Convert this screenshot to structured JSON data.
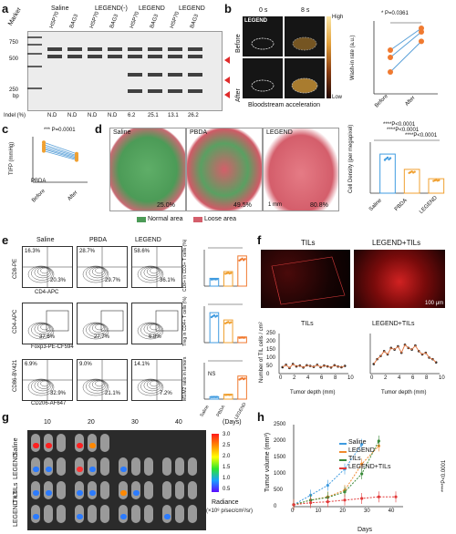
{
  "panels": {
    "a": "a",
    "b": "b",
    "c": "c",
    "d": "d",
    "e": "e",
    "f": "f",
    "g": "g",
    "h": "h"
  },
  "panel_a": {
    "groups": [
      "Saline",
      "LEGEND(-)",
      "LEGEND",
      "LEGEND"
    ],
    "lanes": [
      "Marker",
      "HSP70",
      "BAG3",
      "HSP70",
      "BAG3",
      "HSP70",
      "BAG3",
      "HSP70",
      "BAG3"
    ],
    "ladder": [
      "750",
      "500",
      "250",
      "bp"
    ],
    "indel_label": "Indel (%)",
    "indel": [
      "N.D",
      "N.D",
      "N.D",
      "N.D",
      "6.2",
      "25.1",
      "13.1",
      "26.2"
    ]
  },
  "panel_b": {
    "times": [
      "0 s",
      "8 s"
    ],
    "rows": [
      "Before",
      "After"
    ],
    "tag": "LEGEND",
    "scale_high": "High",
    "scale_low": "Low",
    "caption": "Bloodstream acceleration",
    "ylabel": "Wash-in rate (a.u.)",
    "pvalue": "* P=0.0361",
    "xticks": [
      "Before",
      "After"
    ]
  },
  "panel_c": {
    "ylabel": "TIFP (mmHg)",
    "pvalue": "*** P=0.0001",
    "tag": "PBDA",
    "xticks": [
      "Before",
      "After"
    ]
  },
  "panel_d": {
    "labels": [
      "Saline",
      "PBDA",
      "LEGEND"
    ],
    "pcts": [
      "25.0%",
      "49.5%",
      "80.8%"
    ],
    "legend": [
      "Normal area",
      "Loose area"
    ],
    "scalebar": "1 mm",
    "ylabel": "Cell Density (per megapixel)",
    "xticks": [
      "Saline",
      "PBDA",
      "LEGEND"
    ],
    "pvalues": [
      "****P<0.0001",
      "****P<0.0001",
      "****P<0.0001"
    ]
  },
  "panel_e": {
    "cols": [
      "Saline",
      "PBDA",
      "LEGEND"
    ],
    "row1": {
      "ylab": "CD8-PE",
      "xlab": "CD4-APC",
      "tl": [
        "16.3%",
        "28.7%",
        "58.6%"
      ],
      "br": [
        "20.3%",
        "29.7%",
        "36.1%"
      ]
    },
    "row2": {
      "ylab": "CD4-APC",
      "xlab": "Foxp3-PE-CF594",
      "vals": [
        "37.6%",
        "27.7%",
        "6.8%"
      ]
    },
    "row3": {
      "ylab": "CD86-BV421",
      "xlab": "CD206-AF647",
      "tl": [
        "6.9%",
        "9.0%",
        "14.1%"
      ],
      "br": [
        "32.9%",
        "21.1%",
        "7.2%"
      ]
    },
    "bar_ylabels": [
      "CD8+ in CD3+ T cells (%)",
      "Treg in CD4+ T cells (%)",
      "M1/M2 ratio in tumors"
    ],
    "bar_xticks": [
      "Saline",
      "PBDA",
      "LEGEND"
    ],
    "ns": "NS"
  },
  "panel_f": {
    "titles": [
      "TILs",
      "LEGEND+TILs"
    ],
    "scalebar": "100 μm",
    "ylabel": "Number of TIL cells / cm²",
    "xlabel": "Tumor depth (mm)",
    "xticks": [
      "0",
      "2",
      "4",
      "6",
      "8",
      "10"
    ],
    "yticks": [
      "0",
      "50",
      "100",
      "150",
      "200",
      "250"
    ]
  },
  "panel_g": {
    "days": [
      "10",
      "20",
      "30",
      "40"
    ],
    "days_unit": "(Days)",
    "rows": [
      "Saline",
      "LEGEND",
      "TILs",
      "LEGEND +TILs"
    ],
    "scale": [
      "3.0",
      "2.5",
      "2.0",
      "1.5",
      "1.0",
      "0.5"
    ],
    "radiance": "Radiance",
    "radiance_unit": "(×10⁸ p/sec/cm²/sr)"
  },
  "chart_data": [
    {
      "type": "scatter",
      "panel": "b",
      "x": [
        "Before",
        "After"
      ],
      "series": [
        {
          "values": [
            3,
            7.2
          ]
        },
        {
          "values": [
            5,
            8.5
          ]
        },
        {
          "values": [
            6,
            9
          ]
        }
      ],
      "ylabel": "Wash-in rate (a.u.)"
    },
    {
      "type": "line",
      "panel": "c",
      "x": [
        "Before",
        "After"
      ],
      "series": [
        {
          "values": [
            14,
            10
          ]
        },
        {
          "values": [
            13.2,
            9.4
          ]
        },
        {
          "values": [
            12.6,
            9
          ]
        },
        {
          "values": [
            12,
            8.6
          ]
        },
        {
          "values": [
            11.6,
            8.2
          ]
        },
        {
          "values": [
            11,
            7.8
          ]
        }
      ],
      "ylabel": "TIFP (mmHg)",
      "ylim": [
        0,
        16
      ]
    },
    {
      "type": "bar",
      "panel": "d",
      "categories": [
        "Saline",
        "PBDA",
        "LEGEND"
      ],
      "values": [
        2300,
        1400,
        850
      ],
      "ylabel": "Cell Density (per megapixel)",
      "ylim": [
        0,
        3000
      ]
    },
    {
      "type": "bar",
      "panel": "e1",
      "categories": [
        "Saline",
        "PBDA",
        "LEGEND"
      ],
      "values": [
        15,
        28,
        58
      ],
      "ylim": [
        0,
        70
      ],
      "ylabel": "CD8+ in CD3+ T cells (%)"
    },
    {
      "type": "bar",
      "panel": "e2",
      "categories": [
        "Saline",
        "PBDA",
        "LEGEND"
      ],
      "values": [
        37,
        28,
        7
      ],
      "ylim": [
        0,
        45
      ],
      "ylabel": "Treg in CD4+ T cells (%)"
    },
    {
      "type": "bar",
      "panel": "e3",
      "categories": [
        "Saline",
        "PBDA",
        "LEGEND"
      ],
      "values": [
        0.2,
        0.4,
        1.9
      ],
      "ylim": [
        0,
        3
      ],
      "ylabel": "M1/M2 ratio in tumors"
    },
    {
      "type": "scatter",
      "panel": "f-TILs",
      "title": "TILs",
      "x": [
        0.5,
        1,
        1.5,
        2,
        2.5,
        3,
        3.5,
        4,
        4.5,
        5,
        5.5,
        6,
        6.5,
        7,
        7.5,
        8,
        8.5,
        9,
        9.5
      ],
      "values": [
        40,
        55,
        35,
        60,
        45,
        50,
        38,
        52,
        48,
        42,
        55,
        40,
        50,
        45,
        38,
        52,
        44,
        40,
        48
      ],
      "xlim": [
        0,
        10
      ],
      "ylim": [
        0,
        250
      ],
      "xlabel": "Tumor depth (mm)",
      "ylabel": "Number of TIL cells / cm²"
    },
    {
      "type": "scatter",
      "panel": "f-LEGEND+TILs",
      "title": "LEGEND+TILs",
      "x": [
        0.5,
        1,
        1.5,
        2,
        2.5,
        3,
        3.5,
        4,
        4.5,
        5,
        5.5,
        6,
        6.5,
        7,
        7.5,
        8,
        8.5,
        9,
        9.5
      ],
      "values": [
        60,
        90,
        110,
        140,
        120,
        160,
        150,
        170,
        130,
        180,
        160,
        150,
        175,
        140,
        120,
        130,
        100,
        90,
        70
      ],
      "xlim": [
        0,
        10
      ],
      "ylim": [
        0,
        250
      ],
      "xlabel": "Tumor depth (mm)"
    },
    {
      "type": "line",
      "panel": "h",
      "x": [
        0,
        7,
        14,
        21,
        28,
        35,
        42
      ],
      "series": [
        {
          "name": "Saline",
          "color": "#3f9be0",
          "values": [
            60,
            350,
            650,
            1150,
            1900,
            null,
            null
          ]
        },
        {
          "name": "LEGEND",
          "color": "#f08a2e",
          "values": [
            60,
            200,
            300,
            500,
            1300,
            1850,
            null
          ]
        },
        {
          "name": "TILs",
          "color": "#3a8a3a",
          "values": [
            60,
            200,
            280,
            450,
            1000,
            2000,
            null
          ]
        },
        {
          "name": "LEGEND+TILs",
          "color": "#e23b3b",
          "values": [
            60,
            120,
            150,
            200,
            250,
            300,
            300
          ]
        }
      ],
      "xlabel": "Days",
      "ylabel": "Tumor volume (mm³)",
      "xlim": [
        0,
        45
      ],
      "ylim": [
        0,
        2500
      ],
      "xticks": [
        "0",
        "10",
        "20",
        "30",
        "40"
      ],
      "yticks": [
        "0",
        "500",
        "1000",
        "1500",
        "2000",
        "2500"
      ],
      "annotation": "****P<0.0001"
    }
  ]
}
